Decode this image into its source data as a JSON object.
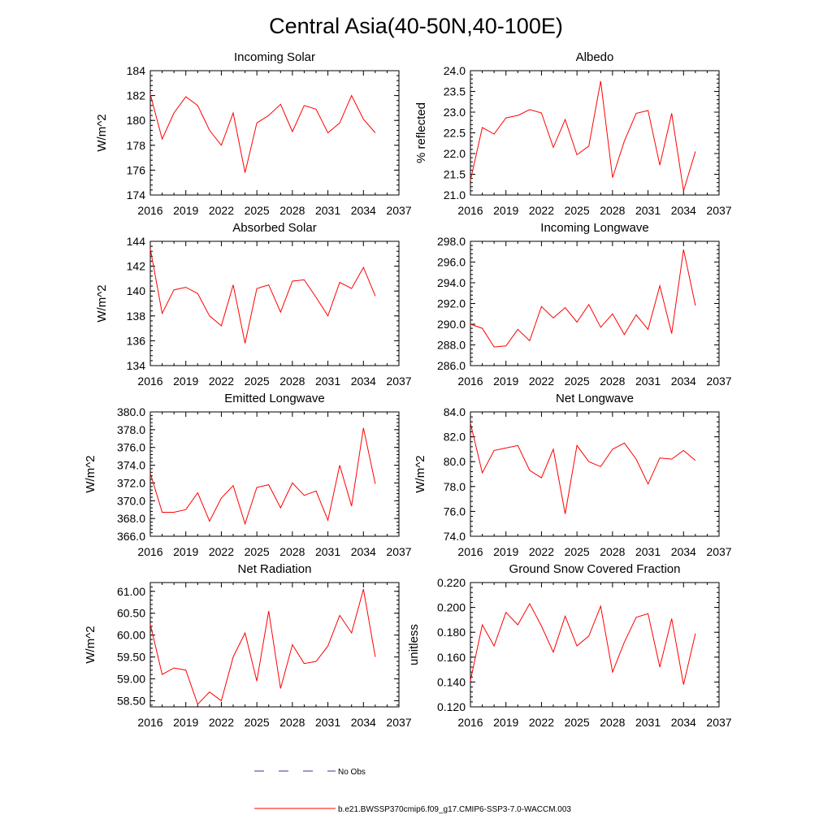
{
  "figure": {
    "title": "Central Asia(40-50N,40-100E)",
    "legend": [
      {
        "label": "No Obs",
        "color": "#3333aa",
        "style": "dashed"
      },
      {
        "label": "b.e21.BWSSP370cmip6.f09_g17.CMIP6-SSP3-7.0-WACCM.003",
        "color": "#ff0000",
        "style": "solid"
      }
    ],
    "line_color": "#ff0000"
  },
  "chart_data": [
    {
      "type": "line",
      "title": "Incoming Solar",
      "ylabel": "W/m^2",
      "xlim": [
        2016,
        2037
      ],
      "xticks": [
        "2016",
        "2019",
        "2022",
        "2025",
        "2028",
        "2031",
        "2034",
        "2037"
      ],
      "ylim": [
        174,
        184
      ],
      "yticks": [
        "174",
        "176",
        "178",
        "180",
        "182",
        "184"
      ],
      "x": [
        2016,
        2017,
        2018,
        2019,
        2020,
        2021,
        2022,
        2023,
        2024,
        2025,
        2026,
        2027,
        2028,
        2029,
        2030,
        2031,
        2032,
        2033,
        2034,
        2035
      ],
      "series": [
        {
          "name": "b.e21.BWSSP370cmip6.f09_g17.CMIP6-SSP3-7.0-WACCM.003",
          "values": [
            182.1,
            178.5,
            180.6,
            181.9,
            181.2,
            179.2,
            178.0,
            180.6,
            175.8,
            179.8,
            180.4,
            181.3,
            179.1,
            181.2,
            180.9,
            179.0,
            179.8,
            182.0,
            180.1,
            179.0
          ]
        }
      ]
    },
    {
      "type": "line",
      "title": "Albedo",
      "ylabel": "% reflected",
      "xlim": [
        2016,
        2037
      ],
      "xticks": [
        "2016",
        "2019",
        "2022",
        "2025",
        "2028",
        "2031",
        "2034",
        "2037"
      ],
      "ylim": [
        21.0,
        24.0
      ],
      "yticks": [
        "21.0",
        "21.5",
        "22.0",
        "22.5",
        "23.0",
        "23.5",
        "24.0"
      ],
      "x": [
        2016,
        2017,
        2018,
        2019,
        2020,
        2021,
        2022,
        2023,
        2024,
        2025,
        2026,
        2027,
        2028,
        2029,
        2030,
        2031,
        2032,
        2033,
        2034,
        2035
      ],
      "series": [
        {
          "name": "b.e21.BWSSP370cmip6.f09_g17.CMIP6-SSP3-7.0-WACCM.003",
          "values": [
            21.35,
            22.63,
            22.47,
            22.86,
            22.92,
            23.06,
            22.98,
            22.15,
            22.82,
            21.97,
            22.18,
            23.75,
            21.42,
            22.3,
            22.97,
            23.04,
            21.72,
            22.97,
            21.1,
            22.05
          ]
        }
      ]
    },
    {
      "type": "line",
      "title": "Absorbed Solar",
      "ylabel": "W/m^2",
      "xlim": [
        2016,
        2037
      ],
      "xticks": [
        "2016",
        "2019",
        "2022",
        "2025",
        "2028",
        "2031",
        "2034",
        "2037"
      ],
      "ylim": [
        134,
        144
      ],
      "yticks": [
        "134",
        "136",
        "138",
        "140",
        "142",
        "144"
      ],
      "x": [
        2016,
        2017,
        2018,
        2019,
        2020,
        2021,
        2022,
        2023,
        2024,
        2025,
        2026,
        2027,
        2028,
        2029,
        2030,
        2031,
        2032,
        2033,
        2034,
        2035
      ],
      "series": [
        {
          "name": "b.e21.BWSSP370cmip6.f09_g17.CMIP6-SSP3-7.0-WACCM.003",
          "values": [
            143.4,
            138.2,
            140.1,
            140.3,
            139.8,
            138.0,
            137.2,
            140.5,
            135.8,
            140.2,
            140.5,
            138.3,
            140.8,
            140.9,
            139.5,
            138.0,
            140.7,
            140.2,
            141.9,
            139.6
          ]
        }
      ]
    },
    {
      "type": "line",
      "title": "Incoming Longwave",
      "ylabel": "",
      "xlim": [
        2016,
        2037
      ],
      "xticks": [
        "2016",
        "2019",
        "2022",
        "2025",
        "2028",
        "2031",
        "2034",
        "2037"
      ],
      "ylim": [
        286.0,
        298.0
      ],
      "yticks": [
        "286.0",
        "288.0",
        "290.0",
        "292.0",
        "294.0",
        "296.0",
        "298.0"
      ],
      "x": [
        2016,
        2017,
        2018,
        2019,
        2020,
        2021,
        2022,
        2023,
        2024,
        2025,
        2026,
        2027,
        2028,
        2029,
        2030,
        2031,
        2032,
        2033,
        2034,
        2035
      ],
      "series": [
        {
          "name": "b.e21.BWSSP370cmip6.f09_g17.CMIP6-SSP3-7.0-WACCM.003",
          "values": [
            290.0,
            289.6,
            287.8,
            287.9,
            289.5,
            288.4,
            291.7,
            290.6,
            291.6,
            290.2,
            291.9,
            289.7,
            291.0,
            289.0,
            290.9,
            289.5,
            293.7,
            289.1,
            297.2,
            291.8
          ]
        }
      ]
    },
    {
      "type": "line",
      "title": "Emitted Longwave",
      "ylabel": "W/m^2",
      "xlim": [
        2016,
        2037
      ],
      "xticks": [
        "2016",
        "2019",
        "2022",
        "2025",
        "2028",
        "2031",
        "2034",
        "2037"
      ],
      "ylim": [
        366.0,
        380.0
      ],
      "yticks": [
        "366.0",
        "368.0",
        "370.0",
        "372.0",
        "374.0",
        "376.0",
        "378.0",
        "380.0"
      ],
      "x": [
        2016,
        2017,
        2018,
        2019,
        2020,
        2021,
        2022,
        2023,
        2024,
        2025,
        2026,
        2027,
        2028,
        2029,
        2030,
        2031,
        2032,
        2033,
        2034,
        2035
      ],
      "series": [
        {
          "name": "b.e21.BWSSP370cmip6.f09_g17.CMIP6-SSP3-7.0-WACCM.003",
          "values": [
            373.1,
            368.7,
            368.7,
            369.0,
            370.9,
            367.7,
            370.3,
            371.7,
            367.4,
            371.5,
            371.8,
            369.2,
            372.0,
            370.6,
            371.1,
            367.8,
            374.0,
            369.4,
            378.2,
            371.9
          ]
        }
      ]
    },
    {
      "type": "line",
      "title": "Net Longwave",
      "ylabel": "W/m^2",
      "xlim": [
        2016,
        2037
      ],
      "xticks": [
        "2016",
        "2019",
        "2022",
        "2025",
        "2028",
        "2031",
        "2034",
        "2037"
      ],
      "ylim": [
        74.0,
        84.0
      ],
      "yticks": [
        "74.0",
        "76.0",
        "78.0",
        "80.0",
        "82.0",
        "84.0"
      ],
      "x": [
        2016,
        2017,
        2018,
        2019,
        2020,
        2021,
        2022,
        2023,
        2024,
        2025,
        2026,
        2027,
        2028,
        2029,
        2030,
        2031,
        2032,
        2033,
        2034,
        2035
      ],
      "series": [
        {
          "name": "b.e21.BWSSP370cmip6.f09_g17.CMIP6-SSP3-7.0-WACCM.003",
          "values": [
            83.1,
            79.1,
            80.9,
            81.1,
            81.3,
            79.3,
            78.7,
            81.0,
            75.8,
            81.3,
            80.0,
            79.6,
            81.0,
            81.5,
            80.2,
            78.2,
            80.3,
            80.2,
            80.9,
            80.1
          ]
        }
      ]
    },
    {
      "type": "line",
      "title": "Net Radiation",
      "ylabel": "W/m^2",
      "xlim": [
        2016,
        2037
      ],
      "xticks": [
        "2016",
        "2019",
        "2022",
        "2025",
        "2028",
        "2031",
        "2034",
        "2037"
      ],
      "ylim": [
        58.36,
        61.2
      ],
      "yticks": [
        "58.50",
        "59.00",
        "59.50",
        "60.00",
        "60.50",
        "61.00"
      ],
      "x": [
        2016,
        2017,
        2018,
        2019,
        2020,
        2021,
        2022,
        2023,
        2024,
        2025,
        2026,
        2027,
        2028,
        2029,
        2030,
        2031,
        2032,
        2033,
        2034,
        2035
      ],
      "series": [
        {
          "name": "b.e21.BWSSP370cmip6.f09_g17.CMIP6-SSP3-7.0-WACCM.003",
          "values": [
            60.25,
            59.1,
            59.25,
            59.2,
            58.42,
            58.7,
            58.5,
            59.5,
            60.05,
            58.95,
            60.55,
            58.78,
            59.78,
            59.35,
            59.4,
            59.75,
            60.45,
            60.05,
            61.05,
            59.5
          ]
        }
      ]
    },
    {
      "type": "line",
      "title": "Ground Snow Covered Fraction",
      "ylabel": "unitless",
      "xlim": [
        2016,
        2037
      ],
      "xticks": [
        "2016",
        "2019",
        "2022",
        "2025",
        "2028",
        "2031",
        "2034",
        "2037"
      ],
      "ylim": [
        0.12,
        0.22
      ],
      "yticks": [
        "0.120",
        "0.140",
        "0.160",
        "0.180",
        "0.200",
        "0.220"
      ],
      "x": [
        2016,
        2017,
        2018,
        2019,
        2020,
        2021,
        2022,
        2023,
        2024,
        2025,
        2026,
        2027,
        2028,
        2029,
        2030,
        2031,
        2032,
        2033,
        2034,
        2035
      ],
      "series": [
        {
          "name": "b.e21.BWSSP370cmip6.f09_g17.CMIP6-SSP3-7.0-WACCM.003",
          "values": [
            0.141,
            0.186,
            0.169,
            0.196,
            0.186,
            0.203,
            0.185,
            0.164,
            0.193,
            0.169,
            0.177,
            0.201,
            0.148,
            0.172,
            0.192,
            0.195,
            0.152,
            0.191,
            0.138,
            0.179
          ]
        }
      ]
    }
  ]
}
